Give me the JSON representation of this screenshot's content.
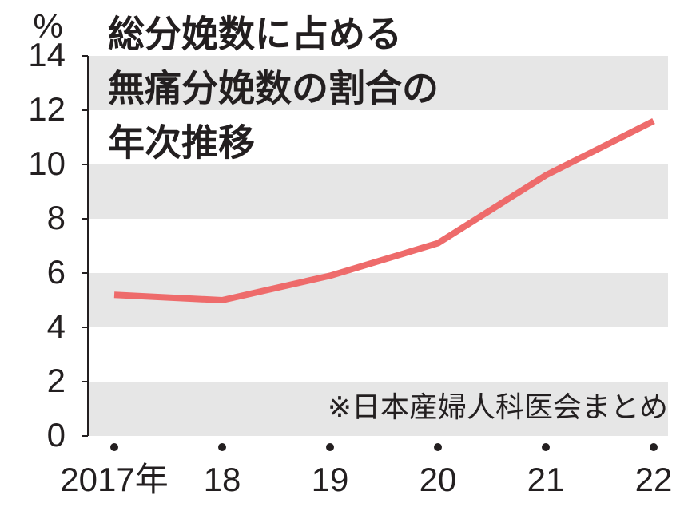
{
  "chart_data": {
    "type": "line",
    "title": [
      "総分娩数に占める",
      "無痛分娩数の割合の",
      "年次推移"
    ],
    "y_unit": "%",
    "note": "※日本産婦人科医会まとめ",
    "categories": [
      "2017年",
      "18",
      "19",
      "20",
      "21",
      "22"
    ],
    "series": [
      {
        "color": "#ee6b6b",
        "values": [
          5.2,
          5.0,
          5.9,
          7.1,
          9.6,
          11.6
        ]
      }
    ],
    "ylim": [
      0,
      14
    ],
    "yticks": [
      0,
      2,
      4,
      6,
      8,
      10,
      12,
      14
    ],
    "grid": "bands",
    "band_color": "#e6e6e6"
  }
}
